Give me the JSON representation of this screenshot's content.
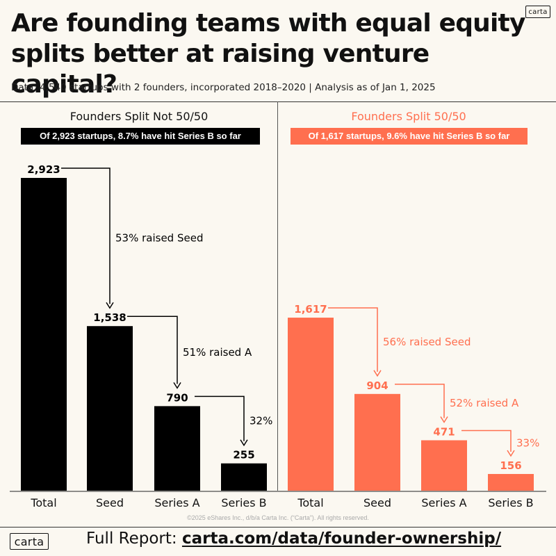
{
  "brand": {
    "logo_text": "carta"
  },
  "title": "Are founding teams with equal equity splits better at raising venture capital?",
  "subtitle": "Data: 4,540 startups with 2 founders, incorporated 2018–2020  |  Analysis as of Jan 1, 2025",
  "colors": {
    "not_equal": "#000000",
    "equal": "#ff6f4f",
    "background": "#fbf8f1"
  },
  "footer": {
    "copyright": "©2025 eShares Inc., d/b/a Carta Inc. (“Carta”). All rights reserved.",
    "report_label": "Full Report:",
    "report_url": "carta.com/data/founder-ownership/"
  },
  "chart_data": [
    {
      "type": "bar",
      "title": "Founders Split Not 50/50",
      "banner": "Of 2,923 startups, 8.7% have hit Series B so far",
      "color": "#000000",
      "categories": [
        "Total",
        "Seed",
        "Series A",
        "Series B"
      ],
      "values": [
        2923,
        1538,
        790,
        255
      ],
      "value_labels": [
        "2,923",
        "1,538",
        "790",
        "255"
      ],
      "conversion_labels": [
        "53% raised Seed",
        "51% raised A",
        "32%"
      ],
      "ylim": [
        0,
        2923
      ]
    },
    {
      "type": "bar",
      "title": "Founders Split 50/50",
      "banner": "Of 1,617 startups, 9.6% have hit Series B so far",
      "color": "#ff6f4f",
      "categories": [
        "Total",
        "Seed",
        "Series A",
        "Series B"
      ],
      "values": [
        1617,
        904,
        471,
        156
      ],
      "value_labels": [
        "1,617",
        "904",
        "471",
        "156"
      ],
      "conversion_labels": [
        "56% raised Seed",
        "52% raised A",
        "33%"
      ],
      "ylim": [
        0,
        2923
      ]
    }
  ]
}
